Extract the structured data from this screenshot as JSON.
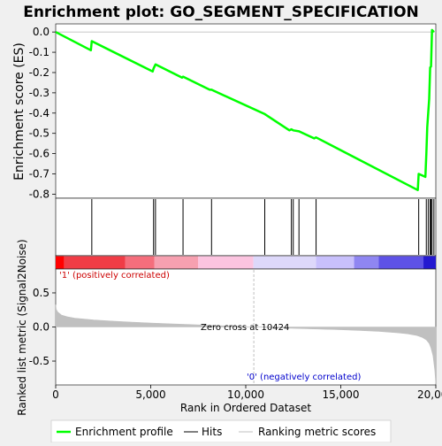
{
  "chart_data": {
    "type": "line",
    "title": "Enrichment plot: GO_SEGMENT_SPECIFICATION",
    "x_axis": {
      "label": "Rank in Ordered Dataset",
      "range": [
        0,
        20000
      ],
      "ticks": [
        0,
        5000,
        10000,
        15000,
        20000
      ],
      "tick_labels": [
        "0",
        "5,000",
        "10,000",
        "15,000",
        "20,000"
      ]
    },
    "top_panel": {
      "ylabel": "Enrichment score (ES)",
      "ylim": [
        -0.82,
        0.04
      ],
      "yticks": [
        0.0,
        -0.1,
        -0.2,
        -0.3,
        -0.4,
        -0.5,
        -0.6,
        -0.7,
        -0.8
      ],
      "ytick_labels": [
        "0.0",
        "-0.1",
        "-0.2",
        "-0.3",
        "-0.4",
        "-0.5",
        "-0.6",
        "-0.7",
        "-0.8"
      ],
      "series": [
        {
          "name": "Enrichment profile",
          "color": "#00ff00",
          "x": [
            0,
            1850,
            1900,
            5100,
            5150,
            5250,
            6650,
            6700,
            8100,
            8200,
            11000,
            12300,
            12400,
            12500,
            12800,
            13600,
            13700,
            19050,
            19100,
            19450,
            19500,
            19550,
            19650,
            19700,
            19750,
            19800,
            19900
          ],
          "y": [
            0.0,
            -0.09,
            -0.045,
            -0.195,
            -0.18,
            -0.16,
            -0.225,
            -0.22,
            -0.285,
            -0.285,
            -0.405,
            -0.485,
            -0.48,
            -0.485,
            -0.49,
            -0.525,
            -0.52,
            -0.78,
            -0.7,
            -0.715,
            -0.6,
            -0.47,
            -0.33,
            -0.175,
            -0.17,
            0.01,
            0.0
          ]
        }
      ]
    },
    "hits": {
      "name": "Hits",
      "color": "#000000",
      "positions": [
        1900,
        5150,
        5250,
        6700,
        8200,
        11000,
        12400,
        12500,
        12800,
        13700,
        19100,
        19500,
        19600,
        19700,
        19750,
        19800,
        19900
      ]
    },
    "rank_bar": {
      "segments": [
        {
          "start": 0,
          "end": 450,
          "color": "#ff0000"
        },
        {
          "start": 450,
          "end": 3650,
          "color": "#f03c46"
        },
        {
          "start": 3650,
          "end": 5200,
          "color": "#f56e7c"
        },
        {
          "start": 5200,
          "end": 7500,
          "color": "#f7a0b0"
        },
        {
          "start": 7500,
          "end": 10400,
          "color": "#fcc4e0"
        },
        {
          "start": 10400,
          "end": 13700,
          "color": "#ddd8fa"
        },
        {
          "start": 13700,
          "end": 15700,
          "color": "#c8c0fc"
        },
        {
          "start": 15700,
          "end": 17000,
          "color": "#8f86f2"
        },
        {
          "start": 17000,
          "end": 19350,
          "color": "#5e52e6"
        },
        {
          "start": 19350,
          "end": 20000,
          "color": "#2418d0"
        }
      ]
    },
    "bottom_panel": {
      "ylabel": "Ranked list metric (Signal2Noise)",
      "ylim": [
        -0.85,
        0.85
      ],
      "yticks": [
        0.5,
        0.0,
        -0.5
      ],
      "ytick_labels": [
        "0.5",
        "0.0",
        "-0.5"
      ],
      "series": [
        {
          "name": "Ranking metric scores",
          "color": "#c0c0c0",
          "x": [
            0,
            30,
            100,
            300,
            600,
            1000,
            1500,
            2000,
            3000,
            4000,
            5000,
            6000,
            7000,
            8000,
            9000,
            10000,
            10424,
            11000,
            12000,
            13000,
            14000,
            15000,
            16000,
            17000,
            18000,
            18500,
            19000,
            19300,
            19500,
            19650,
            19750,
            19850,
            19950,
            20000
          ],
          "y": [
            0.33,
            0.26,
            0.22,
            0.175,
            0.15,
            0.13,
            0.115,
            0.102,
            0.085,
            0.07,
            0.058,
            0.047,
            0.036,
            0.025,
            0.014,
            0.004,
            0.0,
            -0.006,
            -0.016,
            -0.024,
            -0.032,
            -0.04,
            -0.05,
            -0.063,
            -0.085,
            -0.1,
            -0.125,
            -0.155,
            -0.19,
            -0.24,
            -0.31,
            -0.42,
            -0.64,
            -0.84
          ]
        }
      ],
      "annotations": {
        "positive": "'1' (positively correlated)",
        "negative": "'0' (negatively correlated)",
        "zero_cross": "Zero cross at 10424",
        "zero_cross_rank": 10424
      }
    },
    "legend": {
      "placement": "bottom",
      "entries": [
        {
          "label": "Enrichment profile",
          "color": "#00ff00"
        },
        {
          "label": "Hits",
          "color": "#000000"
        },
        {
          "label": "Ranking metric scores",
          "color": "#c0c0c0"
        }
      ]
    }
  }
}
